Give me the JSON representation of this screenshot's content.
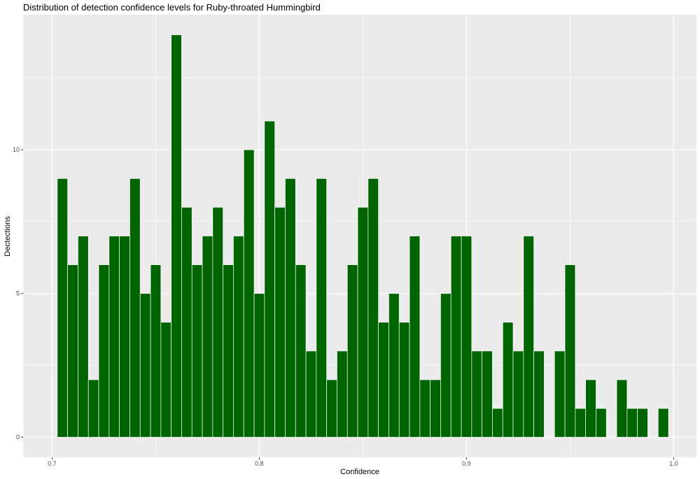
{
  "chart_data": {
    "type": "bar",
    "title": "Distribution of detection confidence levels for Ruby-throated Hummingbird",
    "xlabel": "Confidence",
    "ylabel": "Dectections",
    "xlim": [
      0.686,
      1.011
    ],
    "ylim": [
      -0.7,
      14.7
    ],
    "x_ticks": [
      0.7,
      0.8,
      0.9,
      1.0
    ],
    "x_tick_labels": [
      "0.7",
      "0.8",
      "0.9",
      "1.0"
    ],
    "y_ticks": [
      0,
      5,
      10
    ],
    "y_tick_labels": [
      "0",
      "5",
      "10"
    ],
    "bin_width": 0.005,
    "bin_start": 0.7025,
    "values": [
      9,
      6,
      7,
      2,
      6,
      7,
      7,
      9,
      5,
      6,
      4,
      14,
      8,
      6,
      7,
      8,
      6,
      7,
      10,
      5,
      11,
      8,
      9,
      6,
      3,
      9,
      2,
      3,
      6,
      8,
      9,
      4,
      5,
      4,
      7,
      2,
      2,
      5,
      7,
      7,
      3,
      3,
      1,
      4,
      3,
      7,
      3,
      0,
      3,
      6,
      1,
      2,
      1,
      0,
      2,
      1,
      1,
      0,
      1
    ],
    "bar_color": "#006400",
    "panel_color": "#ebebeb",
    "grid": true,
    "legend": "none"
  }
}
